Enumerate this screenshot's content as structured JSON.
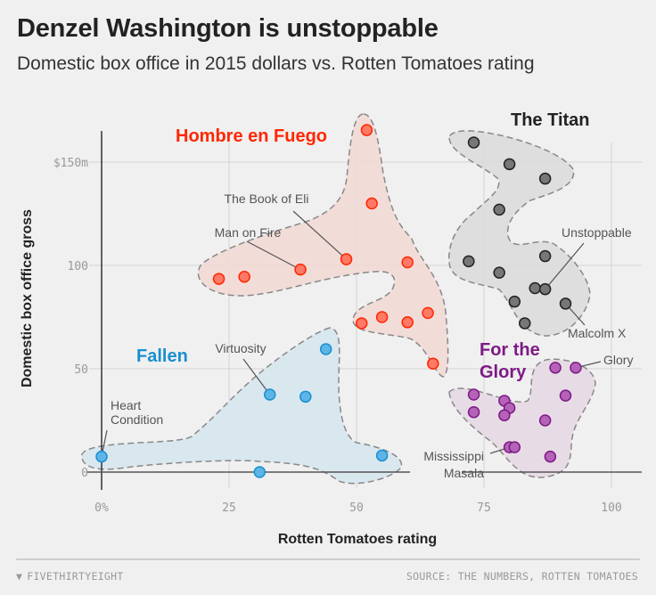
{
  "header": {
    "title": "Denzel Washington is unstoppable",
    "subtitle": "Domestic box office in 2015 dollars vs. Rotten Tomatoes rating"
  },
  "footer": {
    "brand": "FIVETHIRTYEIGHT",
    "source": "SOURCE: THE NUMBERS, ROTTEN TOMATOES"
  },
  "chart_data": {
    "type": "scatter",
    "title": "Denzel Washington is unstoppable",
    "subtitle": "Domestic box office in 2015 dollars vs. Rotten Tomatoes rating",
    "xlabel": "Rotten Tomatoes rating",
    "ylabel": "Domestic box office gross",
    "xlim": [
      0,
      100
    ],
    "ylim": [
      0,
      165
    ],
    "x_ticks": [
      0,
      25,
      50,
      75,
      100
    ],
    "x_tick_labels": [
      "0%",
      "25",
      "50",
      "75",
      "100"
    ],
    "y_ticks": [
      0,
      50,
      100,
      150
    ],
    "y_tick_labels": [
      "0",
      "50",
      "100",
      "$150m"
    ],
    "grid": true,
    "groups": [
      {
        "name": "Hombre en Fuego",
        "color": "#ff2700",
        "fill": "#ff7a66",
        "area": "#f2d9d5",
        "points": [
          [
            23,
            93.5
          ],
          [
            28,
            94.5
          ],
          [
            39,
            98
          ],
          [
            48,
            103
          ],
          [
            52,
            165.5
          ],
          [
            53,
            130
          ],
          [
            60,
            101.5
          ],
          [
            51,
            72
          ],
          [
            55,
            75
          ],
          [
            60,
            72.5
          ],
          [
            64,
            77
          ],
          [
            65,
            52.5
          ]
        ]
      },
      {
        "name": "Fallen",
        "color": "#1a8fcf",
        "fill": "#5cb5e6",
        "area": "#d6e6ee",
        "points": [
          [
            0,
            7.5
          ],
          [
            31,
            0
          ],
          [
            33,
            37.5
          ],
          [
            40,
            36.5
          ],
          [
            44,
            59.5
          ],
          [
            55,
            8
          ]
        ]
      },
      {
        "name": "The Titan",
        "color": "#222222",
        "fill": "#777777",
        "area": "#dcdcdc",
        "points": [
          [
            73,
            159.5
          ],
          [
            80,
            149
          ],
          [
            87,
            142
          ],
          [
            78,
            127
          ],
          [
            72,
            102
          ],
          [
            87,
            104.5
          ],
          [
            78,
            96.5
          ],
          [
            85,
            89
          ],
          [
            87,
            88.5
          ],
          [
            81,
            82.5
          ],
          [
            91,
            81.5
          ],
          [
            83,
            72
          ]
        ]
      },
      {
        "name": "For the Glory",
        "color": "#7d1a85",
        "fill": "#b463b8",
        "area": "#e5d9e3",
        "points": [
          [
            89,
            50.5
          ],
          [
            93,
            50.5
          ],
          [
            91,
            37
          ],
          [
            73,
            37.5
          ],
          [
            73,
            29
          ],
          [
            79,
            34.5
          ],
          [
            80,
            31
          ],
          [
            79,
            27.5
          ],
          [
            87,
            25
          ],
          [
            80,
            12
          ],
          [
            81,
            12
          ],
          [
            88,
            7.5
          ]
        ]
      }
    ],
    "annotations": [
      {
        "label": "The Book of Eli",
        "x": 48,
        "y": 103
      },
      {
        "label": "Man on Fire",
        "x": 39,
        "y": 98
      },
      {
        "label": "Virtuosity",
        "x": 33,
        "y": 37.5
      },
      {
        "label": "Heart Condition",
        "lines": [
          "Heart",
          "Condition"
        ],
        "x": 0,
        "y": 7.5
      },
      {
        "label": "Unstoppable",
        "x": 87,
        "y": 88.5
      },
      {
        "label": "Malcolm X",
        "x": 91,
        "y": 81.5
      },
      {
        "label": "Glory",
        "x": 93,
        "y": 50.5
      },
      {
        "label": "Mississippi Masala",
        "lines": [
          "Mississippi",
          "Masala"
        ],
        "x": 80,
        "y": 12
      }
    ]
  }
}
